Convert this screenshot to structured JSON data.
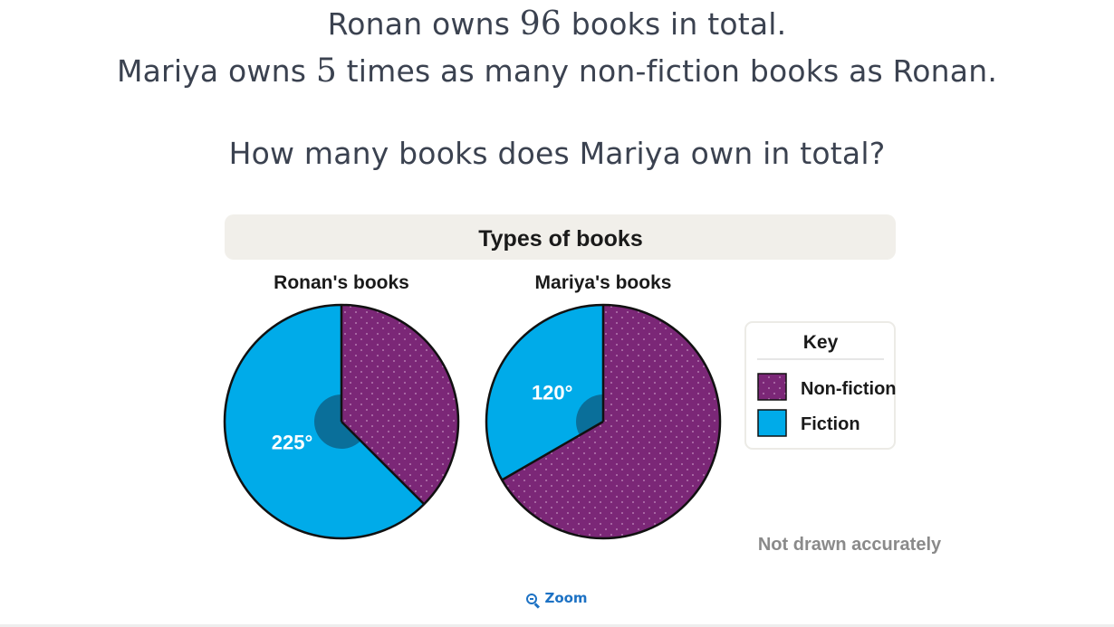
{
  "question": {
    "line1": {
      "pre": "Ronan owns ",
      "num": "96",
      "post": " books in total."
    },
    "line2": {
      "pre": "Mariya owns ",
      "num": "5",
      "post": " times as many non-fiction books as Ronan."
    },
    "line3": "How many books does Mariya own in total?"
  },
  "chart_data": {
    "type": "pie",
    "title": "Types of books",
    "note": "Not drawn accurately",
    "legend_title": "Key",
    "legend_position": "right",
    "categories": [
      "Non-fiction",
      "Fiction"
    ],
    "colors": {
      "Non-fiction": "#7b2777",
      "Fiction": "#00abe9",
      "angle_marker": "#0a6f9a"
    },
    "charts": [
      {
        "title": "Ronan's books",
        "fiction_angle": 225,
        "nonfiction_angle": 135,
        "angle_label": "225°",
        "labeled": "Fiction"
      },
      {
        "title": "Mariya's books",
        "fiction_angle": 120,
        "nonfiction_angle": 240,
        "angle_label": "120°",
        "labeled": "Fiction"
      }
    ]
  },
  "zoom_label": "Zoom"
}
